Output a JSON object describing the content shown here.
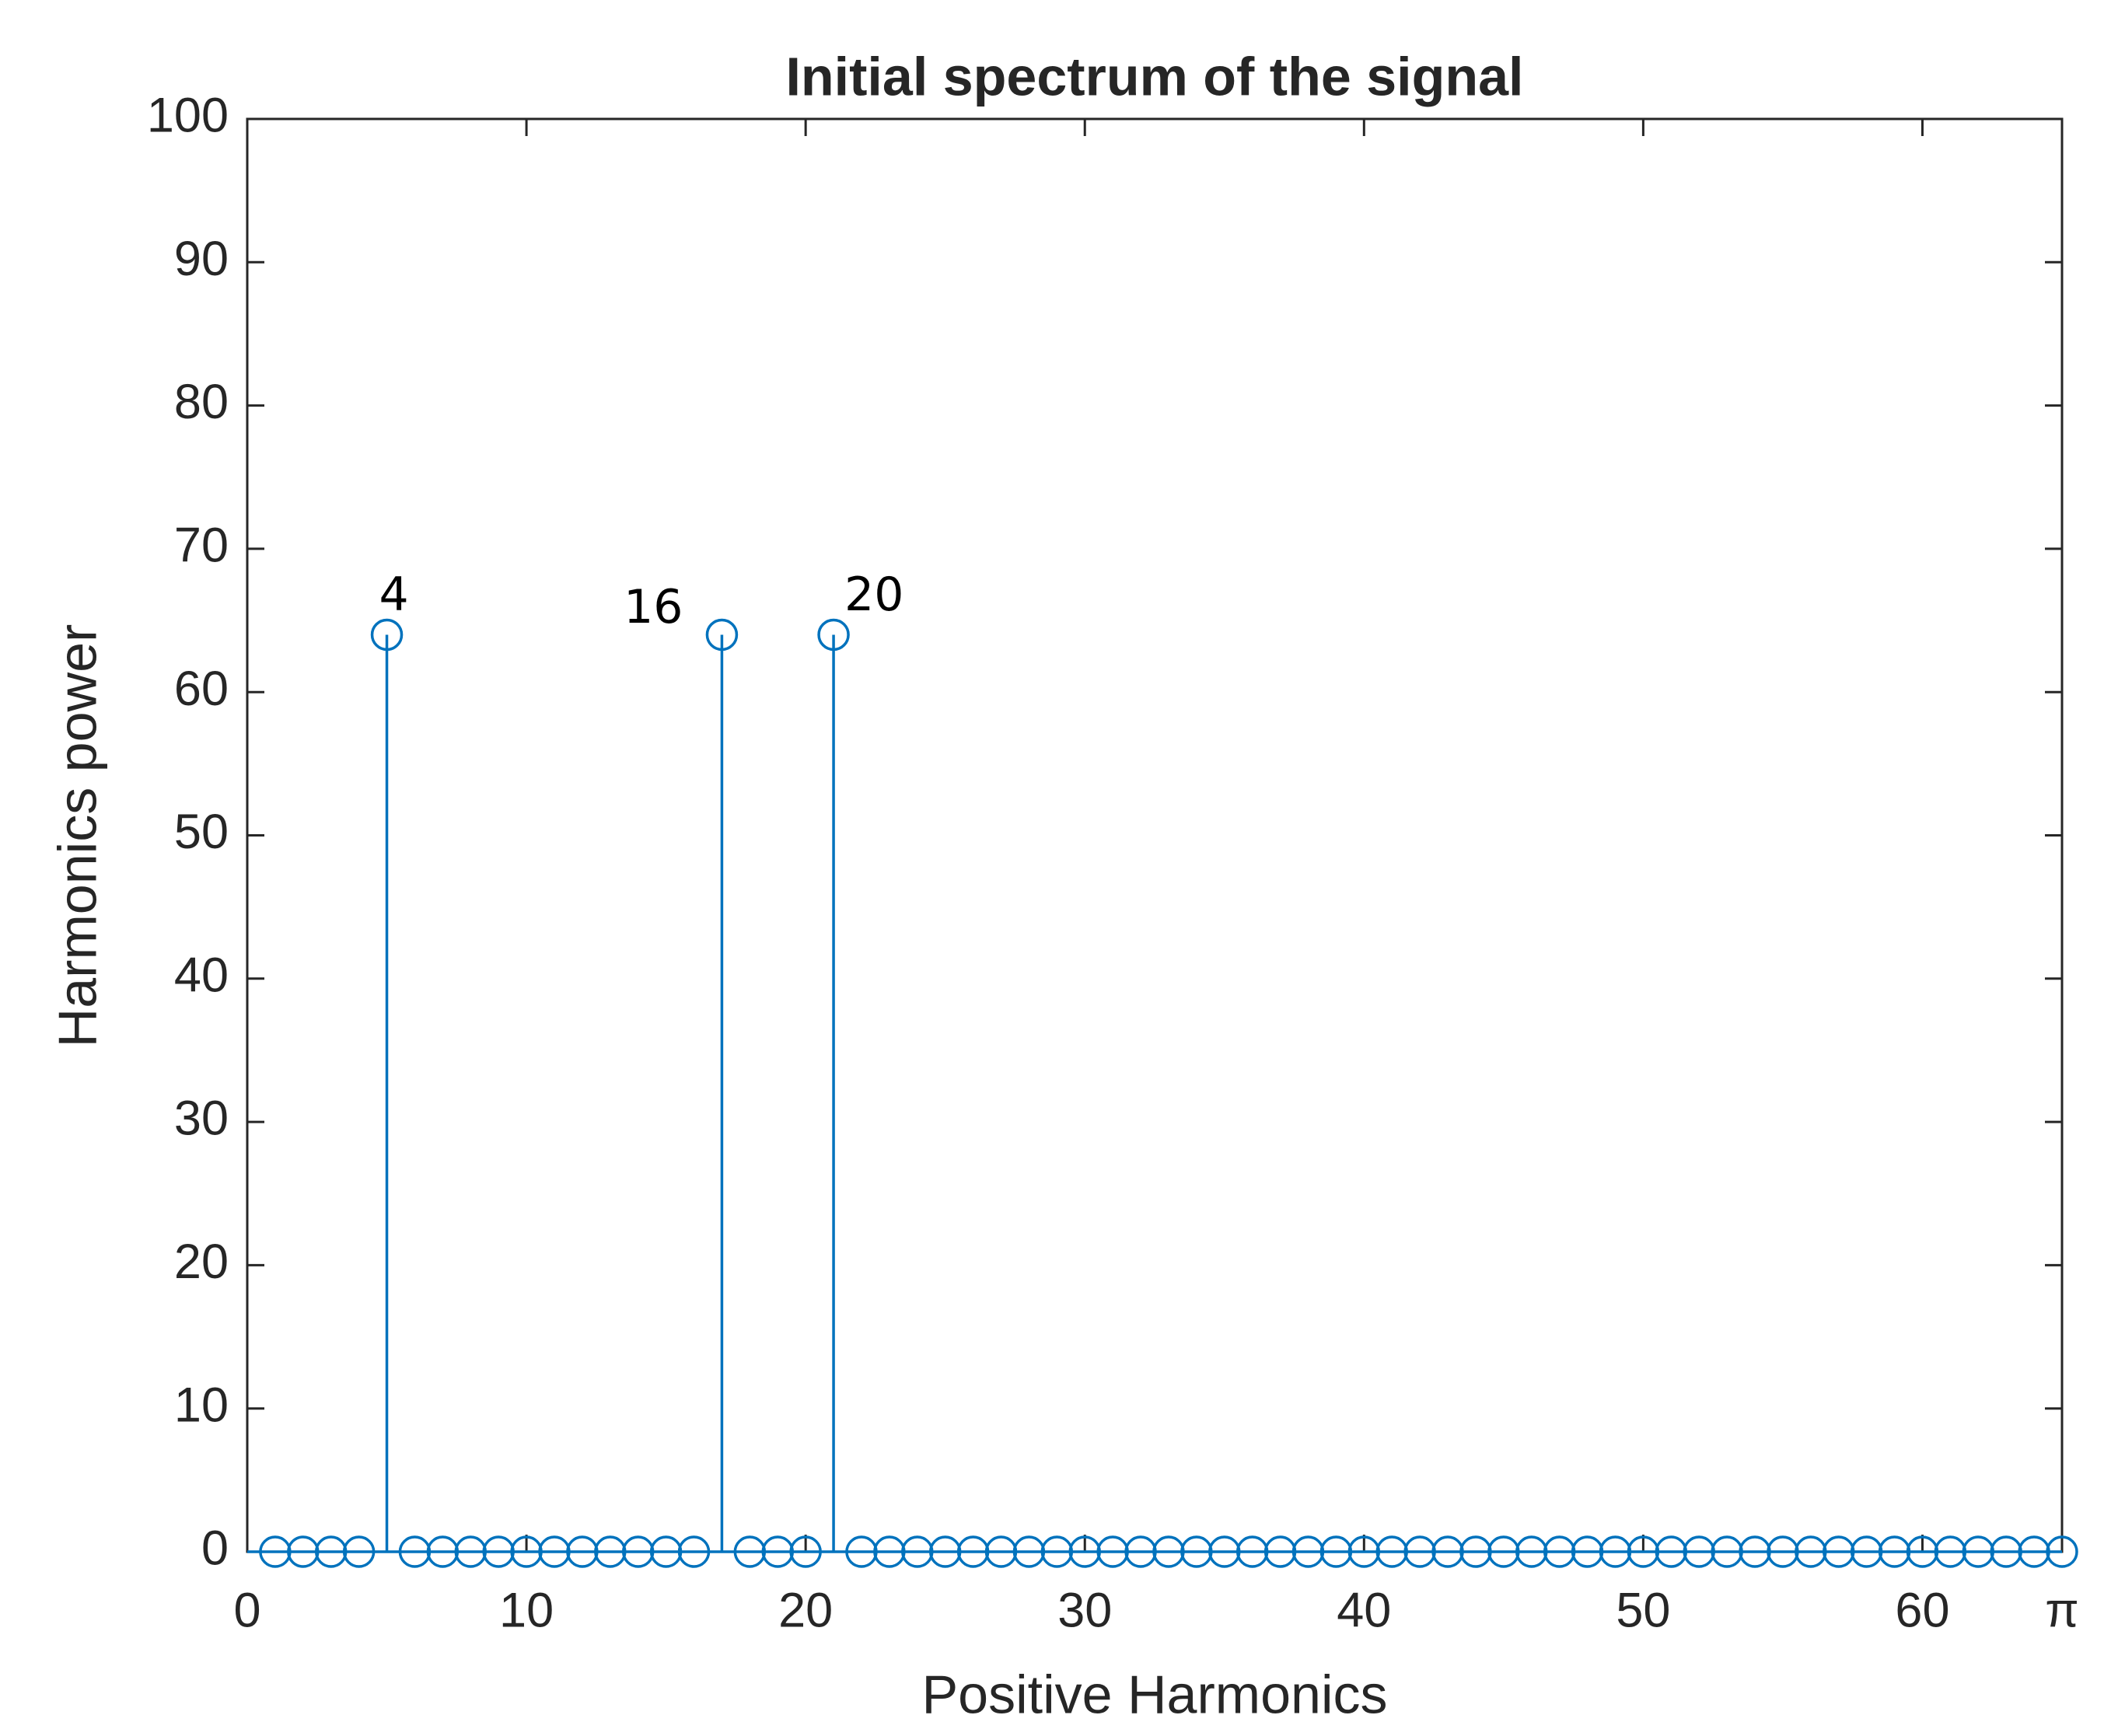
{
  "chart_data": {
    "type": "stem",
    "title": "Initial spectrum of the signal",
    "x_label": "Positive Harmonics",
    "y_label": "Harmonics power",
    "x": [
      1,
      2,
      3,
      4,
      5,
      6,
      7,
      8,
      9,
      10,
      11,
      12,
      13,
      14,
      15,
      16,
      17,
      18,
      19,
      20,
      21,
      22,
      23,
      24,
      25,
      26,
      27,
      28,
      29,
      30,
      31,
      32,
      33,
      34,
      35,
      36,
      37,
      38,
      39,
      40,
      41,
      42,
      43,
      44,
      45,
      46,
      47,
      48,
      49,
      50,
      51,
      52,
      53,
      54,
      55,
      56,
      57,
      58,
      59,
      60,
      61,
      62,
      63,
      64,
      65
    ],
    "values": [
      0,
      0,
      0,
      0,
      64,
      0,
      0,
      0,
      0,
      0,
      0,
      0,
      0,
      0,
      0,
      0,
      64,
      0,
      0,
      0,
      64,
      0,
      0,
      0,
      0,
      0,
      0,
      0,
      0,
      0,
      0,
      0,
      0,
      0,
      0,
      0,
      0,
      0,
      0,
      0,
      0,
      0,
      0,
      0,
      0,
      0,
      0,
      0,
      0,
      0,
      0,
      0,
      0,
      0,
      0,
      0,
      0,
      0,
      0,
      0,
      0,
      0,
      0,
      0,
      0
    ],
    "color": "#0072bd",
    "annotations": [
      "4",
      "16",
      "20"
    ],
    "xlim": [
      0,
      65
    ],
    "ylim": [
      0,
      100
    ],
    "xticks": [
      0,
      10,
      20,
      30,
      40,
      50,
      60,
      {
        "value": 65,
        "label": "π"
      }
    ],
    "yticks": [
      0,
      10,
      20,
      30,
      40,
      50,
      60,
      70,
      80,
      90,
      100
    ],
    "grid": false
  }
}
